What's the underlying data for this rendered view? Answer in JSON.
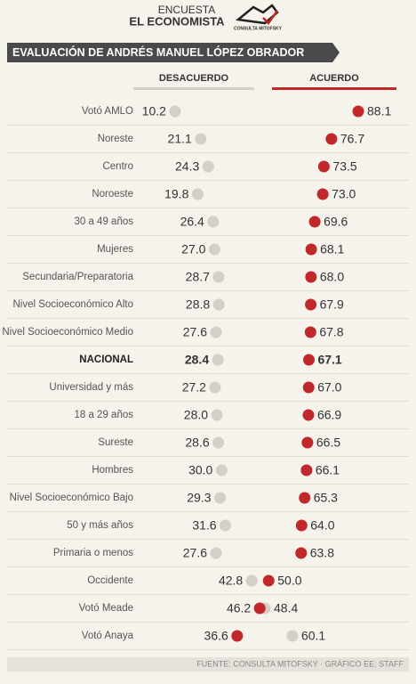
{
  "header": {
    "kicker": "ENCUESTA",
    "brand": "EL ECONOMISTA",
    "logo": "CONSULTA MITOFSKY"
  },
  "chart_data": {
    "type": "dot",
    "title": "EVALUACIÓN DE ANDRÉS MANUEL LÓPEZ OBRADOR",
    "categories": [
      "Votó AMLO",
      "Noreste",
      "Centro",
      "Noroeste",
      "30 a 49 años",
      "Mujeres",
      "Secundaria/Preparatoria",
      "Nivel Socioeconómico Alto",
      "Nivel Socioeconómico Medio",
      "NACIONAL",
      "Universidad y más",
      "18 a 29 años",
      "Sureste",
      "Hombres",
      "Nivel Socioeconómico Bajo",
      "50 y más años",
      "Primaria o menos",
      "Occidente",
      "Votó Meade",
      "Votó Anaya"
    ],
    "highlight": 9,
    "series": [
      {
        "name": "DESACUERDO",
        "color": "#d5cfc7",
        "values": [
          10.2,
          21.1,
          24.3,
          19.8,
          26.4,
          27.0,
          28.7,
          28.8,
          27.6,
          28.4,
          27.2,
          28.0,
          28.6,
          30.0,
          29.3,
          31.6,
          27.6,
          42.8,
          48.4,
          60.1
        ],
        "value_labels": [
          "10.2",
          "21.1",
          "24.3",
          "19.8",
          "26.4",
          "27.0",
          "28.7",
          "28.8",
          "27.6",
          "28.4",
          "27.2",
          "28.0",
          "28.6",
          "30.0",
          "29.3",
          "31.6",
          "27.6",
          "42.8",
          "48.4",
          "60.1"
        ]
      },
      {
        "name": "ACUERDO",
        "color": "#c0282a",
        "values": [
          88.1,
          76.7,
          73.5,
          73.0,
          69.6,
          68.1,
          68.0,
          67.9,
          67.8,
          67.1,
          67.0,
          66.9,
          66.5,
          66.1,
          65.3,
          64.0,
          63.8,
          50.0,
          46.2,
          36.6
        ],
        "value_labels": [
          "88.1",
          "76.7",
          "73.5",
          "73.0",
          "69.6",
          "68.1",
          "68.0",
          "67.9",
          "67.8",
          "67.1",
          "67.0",
          "66.9",
          "66.5",
          "66.1",
          "65.3",
          "64.0",
          "63.8",
          "50.0",
          "46.2",
          "36.6"
        ]
      }
    ],
    "source": "FUENTE: CONSULTA MITOFSKY · GRÁFICO EE: STAFF"
  }
}
